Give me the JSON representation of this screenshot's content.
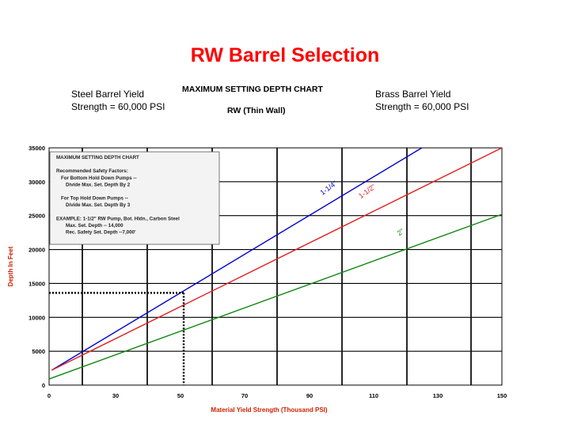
{
  "slide": {
    "title": "RW Barrel Selection",
    "steel_note": [
      "Steel Barrel Yield",
      "Strength = 60,000 PSI"
    ],
    "brass_note": [
      "Brass Barrel Yield",
      "Strength = 60,000 PSI"
    ]
  },
  "chart_data": {
    "type": "line",
    "title": "MAXIMUM SETTING DEPTH CHART",
    "subtitle": "RW (Thin Wall)",
    "xlabel": "Material Yield Strength (Thousand PSI)",
    "ylabel": "Depth In Feet",
    "xlim": [
      0,
      150
    ],
    "ylim": [
      0,
      35000
    ],
    "x_ticks": [
      0,
      30,
      50,
      70,
      90,
      110,
      130,
      150
    ],
    "x_tick_labels": [
      "0",
      "30",
      "50",
      "70",
      "90",
      "110",
      "130",
      "150"
    ],
    "y_ticks": [
      0,
      5000,
      10000,
      15000,
      20000,
      25000,
      30000,
      35000
    ],
    "y_tick_labels": [
      "0",
      "5000",
      "10000",
      "15000",
      "20000",
      "25000",
      "30000",
      "35000"
    ],
    "grid": true,
    "series": [
      {
        "name": "1-1/4\"",
        "color": "#0000cc",
        "x": [
          1.2,
          125
        ],
        "y": [
          2200,
          35000
        ],
        "label_at": [
          94,
          28000
        ]
      },
      {
        "name": "1-1/2\"",
        "color": "#e02020",
        "x": [
          1.2,
          150
        ],
        "y": [
          2200,
          35000
        ],
        "label_at": [
          106,
          27500
        ]
      },
      {
        "name": "2\"",
        "color": "#118811",
        "x": [
          0,
          150
        ],
        "y": [
          900,
          25200
        ],
        "label_at": [
          118,
          22000
        ]
      }
    ],
    "annotations": {
      "dotted_vertical_x": 51,
      "dotted_horizontal_y": 13600
    },
    "inset_box": {
      "lines": [
        {
          "text": "MAXIMUM SETTING DEPTH CHART",
          "indent": 0
        },
        {
          "text": "",
          "indent": 0
        },
        {
          "text": "Recommended Safety Factors:",
          "indent": 0
        },
        {
          "text": "For Bottom Hold Down Pumps --",
          "indent": 1
        },
        {
          "text": "Divide Max. Set. Depth By 2",
          "indent": 2
        },
        {
          "text": "",
          "indent": 0
        },
        {
          "text": "For Top Hold Down Pumps --",
          "indent": 1
        },
        {
          "text": "Divide Max. Set. Depth By 3",
          "indent": 2
        },
        {
          "text": "",
          "indent": 0
        },
        {
          "text": "EXAMPLE: 1-1/2\" RW Pump, Bot. Hldn., Carbon Steel",
          "indent": 0
        },
        {
          "text": "Max. Set. Depth -- 14,000",
          "indent": 2
        },
        {
          "text": "Rec. Safety Set. Depth --7,000'",
          "indent": 2
        }
      ]
    }
  }
}
